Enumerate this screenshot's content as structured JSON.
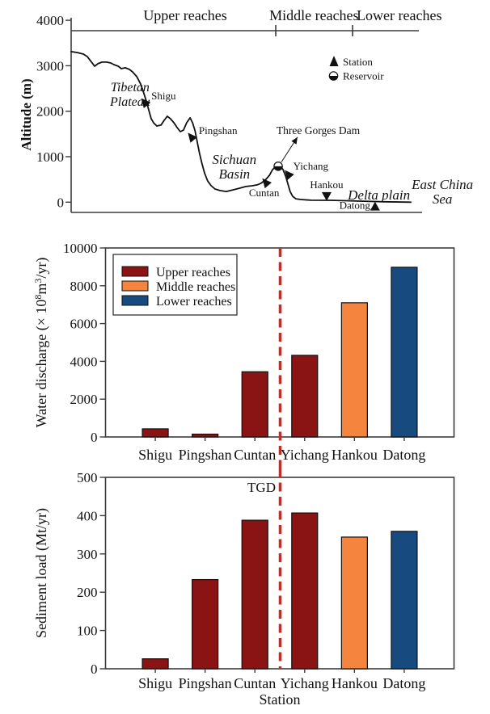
{
  "colors": {
    "upper_reaches": "#8a1313",
    "middle_reaches": "#f5843e",
    "lower_reaches": "#174a7e",
    "divider_red": "#e0201a",
    "axis": "#3c3c3c",
    "curve": "#111111"
  },
  "chart_data": [
    {
      "type": "line",
      "name": "river-longitudinal-profile",
      "ylabel": "Altitude (m)",
      "ylim": [
        0,
        4000
      ],
      "yticks": [
        0,
        1000,
        2000,
        3000,
        4000
      ],
      "x_axis_note": "downstream distance, relative 0-100 (no axis labels shown)",
      "reaches": [
        {
          "label": "Upper reaches",
          "span": [
            0,
            58.3
          ],
          "label_d": 32.5
        },
        {
          "label": "Middle reaches",
          "span": [
            58.3,
            80.2
          ],
          "label_d": 69.2
        },
        {
          "label": "Lower reaches",
          "span": [
            80.2,
            99.1
          ],
          "label_d": 93.5
        }
      ],
      "legend": [
        {
          "symbol": "station-triangle",
          "label": "Station"
        },
        {
          "symbol": "reservoir-circle",
          "label": "Reservoir"
        }
      ],
      "regions": [
        {
          "lines": [
            "Tibetan",
            "Plateau"
          ],
          "pos": [
            16.8,
            2440
          ],
          "size": 16
        },
        {
          "lines": [
            "Sichuan",
            "Basin"
          ],
          "pos": [
            46.5,
            840
          ],
          "size": 17
        },
        {
          "lines": [
            "Delta plain"
          ],
          "pos": [
            87.7,
            60
          ],
          "size": 17
        },
        {
          "lines": [
            "East China",
            "Sea"
          ],
          "pos": [
            105.8,
            290
          ],
          "size": 17
        }
      ],
      "stations": [
        {
          "name": "Shigu",
          "d": 21.0,
          "alt": 2190,
          "marker": "flag",
          "label_off": [
            8,
            -4
          ],
          "anchor": "start"
        },
        {
          "name": "Pingshan",
          "d": 34.3,
          "alt": 1430,
          "marker": "flag",
          "label_off": [
            9,
            -4
          ],
          "anchor": "start"
        },
        {
          "name": "Cuntan",
          "d": 55.5,
          "alt": 430,
          "marker": "flag",
          "label_off": [
            -21,
            17
          ],
          "anchor": "start"
        },
        {
          "name": "Yichang",
          "d": 61.9,
          "alt": 610,
          "marker": "flag",
          "label_off": [
            6,
            -6
          ],
          "anchor": "start"
        },
        {
          "name": "Hankou",
          "d": 72.8,
          "alt": 25,
          "marker": "down",
          "label_off": [
            0,
            -16
          ],
          "anchor": "middle"
        },
        {
          "name": "Datong",
          "d": 86.6,
          "alt": 12,
          "marker": "up",
          "label_off": [
            -6,
            9
          ],
          "anchor": "end"
        }
      ],
      "reservoir_pos": [
        59.0,
        790
      ],
      "dam": {
        "label": "Three Gorges Dam",
        "label_pos": [
          58.5,
          1500
        ],
        "arrow_from": [
          59.9,
          880
        ],
        "arrow_to": [
          64.5,
          1430
        ]
      },
      "points": [
        [
          0,
          3310
        ],
        [
          1.8,
          3290
        ],
        [
          3.5,
          3256
        ],
        [
          4.6,
          3200
        ],
        [
          5.8,
          3080
        ],
        [
          6.7,
          2990
        ],
        [
          7.6,
          3045
        ],
        [
          8.8,
          3080
        ],
        [
          10.1,
          3080
        ],
        [
          11.3,
          3060
        ],
        [
          12.2,
          3025
        ],
        [
          13.4,
          2990
        ],
        [
          14.3,
          2936
        ],
        [
          15.4,
          2955
        ],
        [
          16.6,
          2920
        ],
        [
          17.5,
          2865
        ],
        [
          18.7,
          2760
        ],
        [
          19.8,
          2600
        ],
        [
          20.7,
          2400
        ],
        [
          21.4,
          2225
        ],
        [
          22.1,
          2030
        ],
        [
          22.8,
          1835
        ],
        [
          23.5,
          1745
        ],
        [
          24.4,
          1675
        ],
        [
          25.6,
          1695
        ],
        [
          26.5,
          1800
        ],
        [
          27.4,
          1890
        ],
        [
          28.3,
          1835
        ],
        [
          29.3,
          1745
        ],
        [
          30.2,
          1640
        ],
        [
          31.1,
          1550
        ],
        [
          32,
          1585
        ],
        [
          32.9,
          1745
        ],
        [
          33.9,
          1855
        ],
        [
          34.6,
          1745
        ],
        [
          35.3,
          1570
        ],
        [
          35.9,
          1335
        ],
        [
          36.6,
          1070
        ],
        [
          37.3,
          840
        ],
        [
          38,
          645
        ],
        [
          38.9,
          465
        ],
        [
          39.9,
          360
        ],
        [
          41,
          290
        ],
        [
          42.4,
          255
        ],
        [
          44.2,
          235
        ],
        [
          46.1,
          270
        ],
        [
          47.9,
          305
        ],
        [
          49.8,
          345
        ],
        [
          51.6,
          360
        ],
        [
          53,
          380
        ],
        [
          54.1,
          415
        ],
        [
          55.3,
          485
        ],
        [
          56.5,
          590
        ],
        [
          57.4,
          715
        ],
        [
          58.3,
          785
        ],
        [
          59,
          822
        ],
        [
          59.7,
          785
        ],
        [
          60.4,
          715
        ],
        [
          61.1,
          575
        ],
        [
          61.8,
          395
        ],
        [
          62.4,
          235
        ],
        [
          63.1,
          130
        ],
        [
          64,
          75
        ],
        [
          65.4,
          58
        ],
        [
          68.4,
          42
        ],
        [
          74.2,
          40
        ],
        [
          81.1,
          25
        ],
        [
          89.2,
          8
        ],
        [
          96.8,
          0
        ]
      ]
    },
    {
      "type": "bar",
      "name": "water-discharge",
      "categories": [
        "Shigu",
        "Pingshan",
        "Cuntan",
        "Yichang",
        "Hankou",
        "Datong"
      ],
      "values": [
        430,
        150,
        3450,
        4320,
        7100,
        8980
      ],
      "bar_groups": [
        "upper",
        "upper",
        "upper",
        "upper",
        "middle",
        "lower"
      ],
      "ylabel": "Water discharge (× 10⁸m³/yr)",
      "ylabel_rich": [
        {
          "t": "Water discharge (× 10"
        },
        {
          "t": "8",
          "sup": true
        },
        {
          "t": "m"
        },
        {
          "t": "3",
          "sup": true
        },
        {
          "t": "/yr)"
        }
      ],
      "ylim": [
        0,
        10000
      ],
      "yticks": [
        0,
        2000,
        4000,
        6000,
        8000,
        10000
      ],
      "legend": [
        {
          "label": "Upper reaches",
          "group": "upper"
        },
        {
          "label": "Middle reaches",
          "group": "middle"
        },
        {
          "label": "Lower reaches",
          "group": "lower"
        }
      ],
      "legend_position": "upper-left",
      "divider": {
        "style": "red-dashed",
        "between": [
          "Cuntan",
          "Yichang"
        ]
      }
    },
    {
      "type": "bar",
      "name": "sediment-load",
      "categories": [
        "Shigu",
        "Pingshan",
        "Cuntan",
        "Yichang",
        "Hankou",
        "Datong"
      ],
      "values": [
        26,
        233,
        388,
        407,
        344,
        359
      ],
      "bar_groups": [
        "upper",
        "upper",
        "upper",
        "upper",
        "middle",
        "lower"
      ],
      "ylabel": "Sediment load (Mt/yr)",
      "xlabel": "Station",
      "ylim": [
        0,
        500
      ],
      "yticks": [
        0,
        100,
        200,
        300,
        400,
        500
      ],
      "annotation": {
        "label": "TGD",
        "position": "left-of-divider-top"
      },
      "divider": {
        "style": "red-dashed",
        "between": [
          "Cuntan",
          "Yichang"
        ]
      }
    }
  ]
}
